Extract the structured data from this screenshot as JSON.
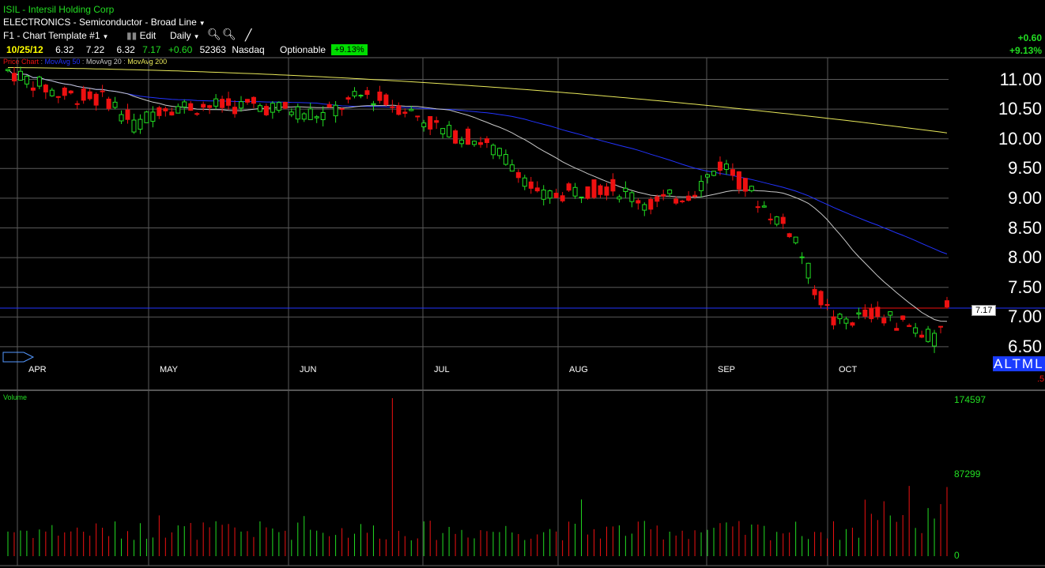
{
  "header": {
    "symbol_title": "ISIL - Intersil Holding Corp",
    "sector": "ELECTRONICS - Semiconductor - Broad Line",
    "template": "F1 - Chart Template #1",
    "edit_label": "Edit",
    "period": "Daily",
    "date": "10/25/12",
    "open": "6.32",
    "high": "7.22",
    "low": "6.32",
    "close": "7.17",
    "change": "+0.60",
    "volume": "52363",
    "exchange": "Nasdaq",
    "optionable": "Optionable",
    "pct_change": "+9.13%",
    "right_change": "+0.60",
    "right_pct": "+9.13%"
  },
  "legend": {
    "price_chart": "Price Chart",
    "ma50": "MovAvg 50",
    "ma20": "MovAvg 20",
    "ma200": "MovAvg 200"
  },
  "price_axis": [
    "11.00",
    "10.50",
    "10.00",
    "9.50",
    "9.00",
    "8.50",
    "8.00",
    "7.50",
    "7.00",
    "6.50"
  ],
  "months": [
    "APR",
    "MAY",
    "JUN",
    "JUL",
    "AUG",
    "SEP",
    "OCT"
  ],
  "last_price_tag": "7.17",
  "alt_label": "ALTML",
  "volume_panel": {
    "label": "Volume",
    "ticks": [
      "174597",
      "87299",
      "0"
    ]
  },
  "colors": {
    "up": "#22dd22",
    "down": "#ee1111",
    "ma50": "#2233ff",
    "ma20": "#c8c8c8",
    "ma200": "#e8e85a",
    "grid": "#5a5a5a"
  }
}
